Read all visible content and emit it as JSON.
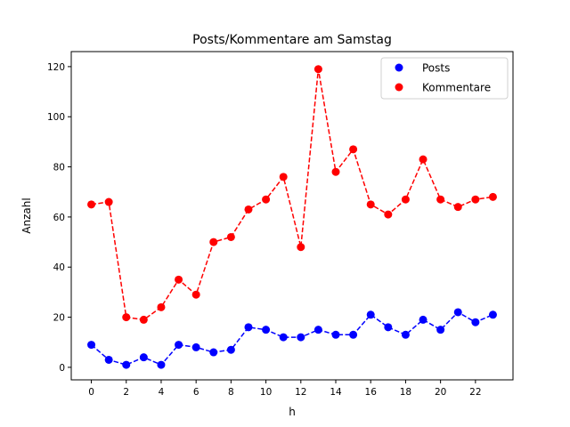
{
  "chart_data": {
    "type": "line",
    "title": "Posts/Kommentare am Samstag",
    "xlabel": "h",
    "ylabel": "Anzahl",
    "x": [
      0,
      1,
      2,
      3,
      4,
      5,
      6,
      7,
      8,
      9,
      10,
      11,
      12,
      13,
      14,
      15,
      16,
      17,
      18,
      19,
      20,
      21,
      22,
      23
    ],
    "xlim": [
      -1.15,
      24.15
    ],
    "ylim": [
      -5,
      126
    ],
    "xticks": [
      0,
      2,
      4,
      6,
      8,
      10,
      12,
      14,
      16,
      18,
      20,
      22
    ],
    "yticks": [
      0,
      20,
      40,
      60,
      80,
      100,
      120
    ],
    "grid": false,
    "legend_position": "top-right",
    "series": [
      {
        "name": "Posts",
        "color": "#0000ff",
        "line_style": "dashed",
        "marker": "circle",
        "values": [
          9,
          3,
          1,
          4,
          1,
          9,
          8,
          6,
          7,
          16,
          15,
          12,
          12,
          15,
          13,
          13,
          21,
          16,
          13,
          19,
          15,
          22,
          18,
          21
        ]
      },
      {
        "name": "Kommentare",
        "color": "#ff0000",
        "line_style": "dashed",
        "marker": "circle",
        "values": [
          65,
          66,
          20,
          19,
          24,
          35,
          29,
          50,
          52,
          63,
          67,
          76,
          48,
          119,
          78,
          87,
          65,
          61,
          67,
          83,
          67,
          64,
          67,
          68
        ]
      }
    ]
  }
}
